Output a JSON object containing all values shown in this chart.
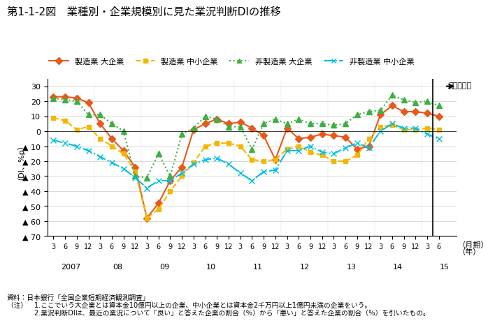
{
  "title": "第1-1-2図　業種別・企業規模別に見た業況判断DIの推移",
  "ylabel": "（DI、%p）",
  "xlabel_right": "（月期）",
  "xlabel_right2": "（年）",
  "mitooshi": "（見通し）",
  "ylim": [
    -70,
    35
  ],
  "yticks": [
    30,
    20,
    10,
    0,
    -10,
    -20,
    -30,
    -40,
    -50,
    -60,
    -70
  ],
  "ytick_labels": [
    "30",
    "20",
    "10",
    "0",
    "▲ 10",
    "▲ 20",
    "▲ 30",
    "▲ 40",
    "▲ 50",
    "▲ 60",
    "▲ 70"
  ],
  "note1": "資料：日本銀行「全国企業短期経済観測調査」",
  "note2": "（注）　1.ここでいう大企業とは資本金10億円以上の企業、中小企業とは資本金2千万円以上1億円未満の企業をいう。",
  "note3": "　　　　2.業況判断DIは、最近の業況について「良い」と答えた企業の割合（％）から「悪い」と答えた企業の割合（％）を引いたもの。",
  "legend": [
    {
      "label": "製造業 大企業",
      "color": "#E8581A",
      "linestyle": "-",
      "marker": "D",
      "dashes": []
    },
    {
      "label": "製造業 中小企業",
      "color": "#F0B800",
      "linestyle": "--",
      "marker": "s",
      "dashes": [
        6,
        3
      ]
    },
    {
      "label": "非製造業 大企業",
      "color": "#3CB043",
      "linestyle": "--",
      "marker": "^",
      "dashes": [
        2,
        2
      ]
    },
    {
      "label": "非製造業 中小企業",
      "color": "#00BFDF",
      "linestyle": "-.",
      "marker": "x",
      "dashes": [
        6,
        2,
        2,
        2
      ]
    }
  ],
  "x_labels": [
    "3",
    "6",
    "9",
    "12",
    "3",
    "6",
    "9",
    "12",
    "3",
    "6",
    "9",
    "12",
    "3",
    "6",
    "9",
    "12",
    "3",
    "6",
    "9",
    "12",
    "3",
    "6",
    "9",
    "12",
    "3",
    "6",
    "9",
    "12",
    "3",
    "6",
    "9",
    "12",
    "3",
    "6"
  ],
  "year_labels": [
    "2007",
    "08",
    "09",
    "10",
    "11",
    "12",
    "13",
    "14",
    "15"
  ],
  "year_positions": [
    0,
    4,
    8,
    12,
    16,
    20,
    24,
    28,
    32
  ],
  "manuf_large": [
    23,
    23,
    22,
    19,
    5,
    -5,
    -13,
    -24,
    -58,
    -48,
    -33,
    -24,
    1,
    5,
    8,
    5,
    6,
    2,
    -3,
    -19,
    2,
    -5,
    -4,
    -2,
    -3,
    -4,
    -12,
    -10,
    11,
    17,
    13,
    13,
    12,
    10
  ],
  "manuf_small": [
    9,
    7,
    1,
    3,
    -5,
    -10,
    -15,
    -27,
    -58,
    -52,
    -40,
    -30,
    -21,
    -10,
    -8,
    -8,
    -10,
    -19,
    -20,
    -19,
    -12,
    -10,
    -14,
    -16,
    -20,
    -20,
    -16,
    -5,
    3,
    4,
    1,
    1,
    2,
    1
  ],
  "nonmanuf_large": [
    22,
    21,
    20,
    11,
    11,
    5,
    0,
    -30,
    -31,
    -15,
    -30,
    -2,
    2,
    10,
    8,
    3,
    3,
    -12,
    5,
    8,
    5,
    8,
    5,
    5,
    4,
    5,
    11,
    13,
    14,
    24,
    21,
    19,
    20,
    17
  ],
  "nonmanuf_small": [
    -6,
    -8,
    -10,
    -13,
    -17,
    -21,
    -25,
    -31,
    -38,
    -33,
    -33,
    -28,
    -22,
    -19,
    -18,
    -22,
    -28,
    -33,
    -27,
    -26,
    -13,
    -13,
    -10,
    -14,
    -15,
    -11,
    -8,
    -11,
    0,
    5,
    2,
    2,
    -2,
    -5
  ]
}
